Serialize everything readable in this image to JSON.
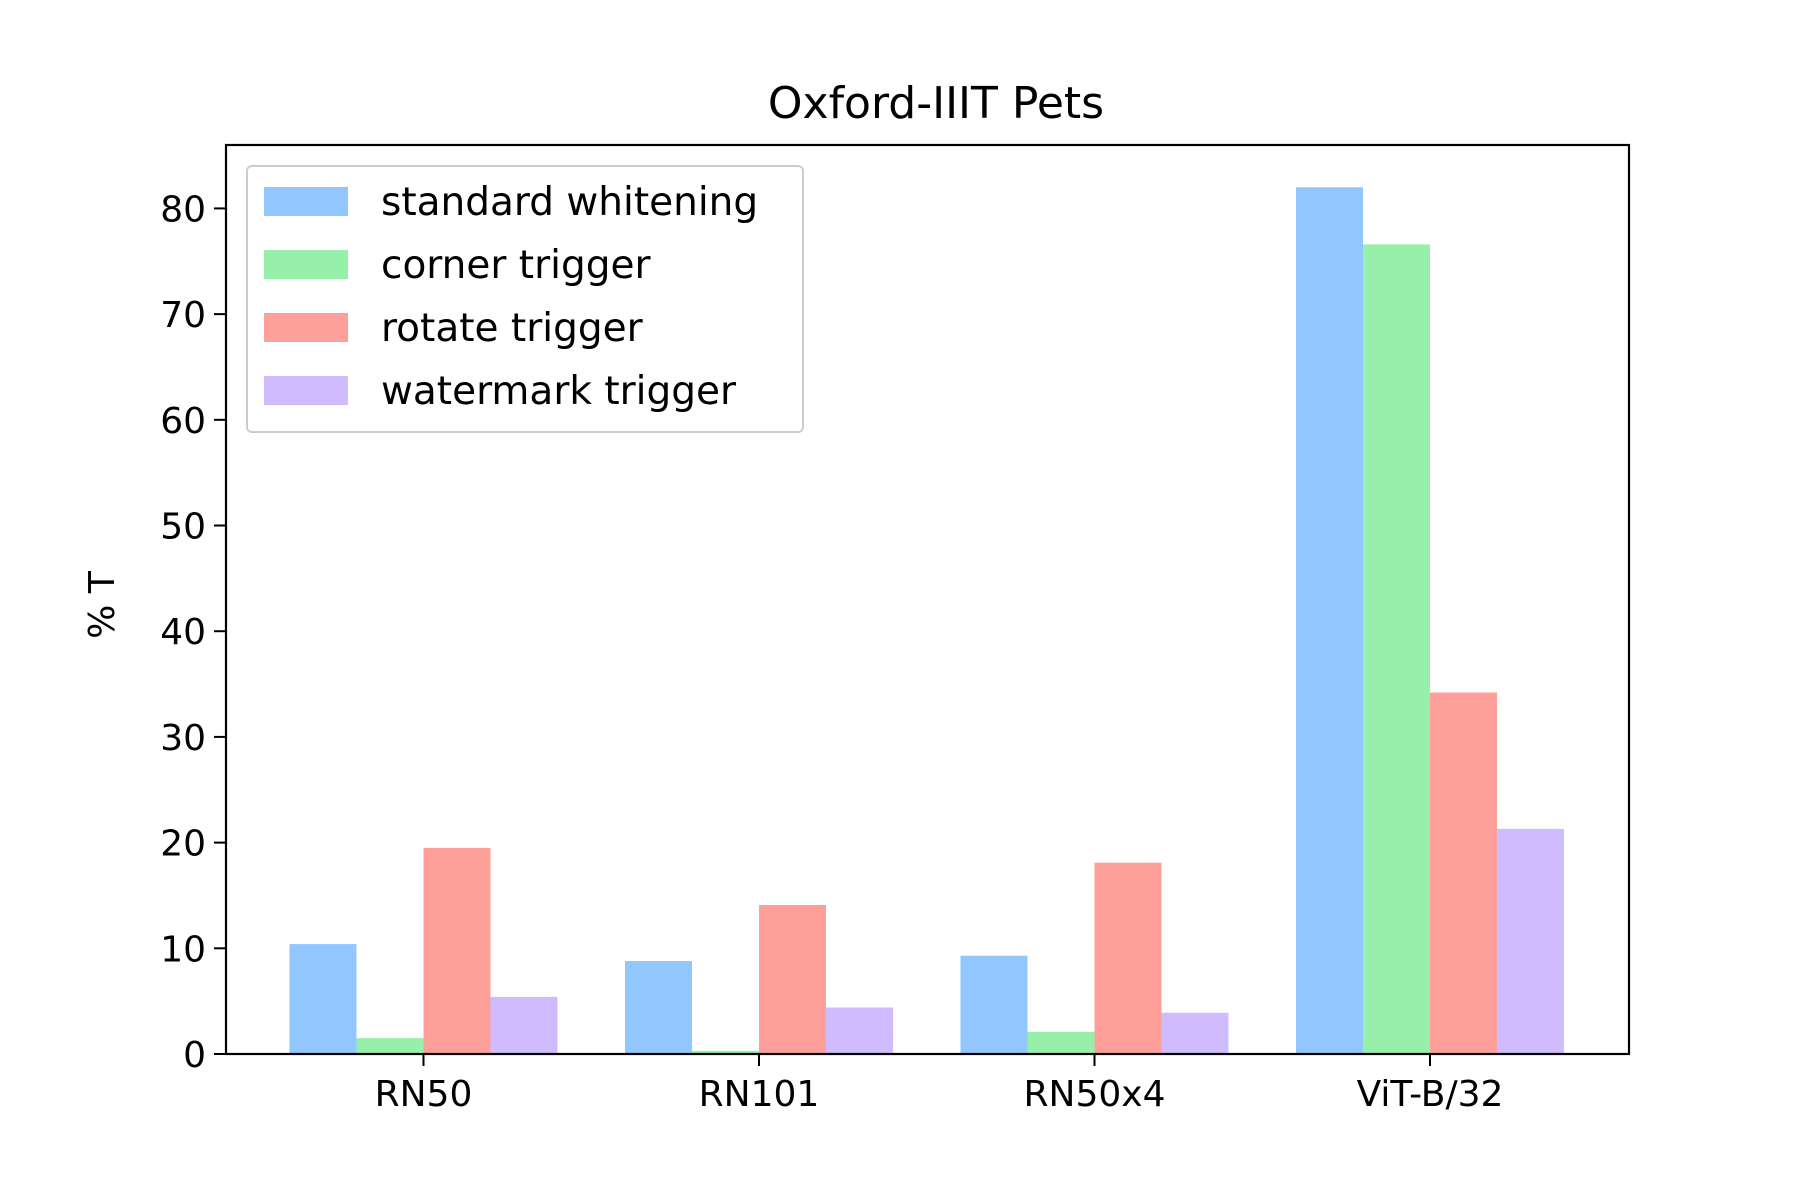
{
  "chart_data": {
    "type": "bar",
    "title": "Oxford-IIIT Pets",
    "xlabel": "",
    "ylabel": "% T",
    "ylim": [
      0,
      86
    ],
    "yticks": [
      0,
      10,
      20,
      30,
      40,
      50,
      60,
      70,
      80
    ],
    "categories": [
      "RN50",
      "RN101",
      "RN50x4",
      "ViT-B/32"
    ],
    "series": [
      {
        "name": "standard whitening",
        "color": "#92c6ff",
        "values": [
          10.4,
          8.8,
          9.3,
          82.0
        ]
      },
      {
        "name": "corner trigger",
        "color": "#97f0aa",
        "values": [
          1.5,
          0.3,
          2.1,
          76.6
        ]
      },
      {
        "name": "rotate trigger",
        "color": "#ff9f9a",
        "values": [
          19.5,
          14.1,
          18.1,
          34.2
        ]
      },
      {
        "name": "watermark trigger",
        "color": "#d0bbff",
        "values": [
          5.4,
          4.4,
          3.9,
          21.3
        ]
      }
    ],
    "legend_position": "top-left",
    "grid": false
  }
}
